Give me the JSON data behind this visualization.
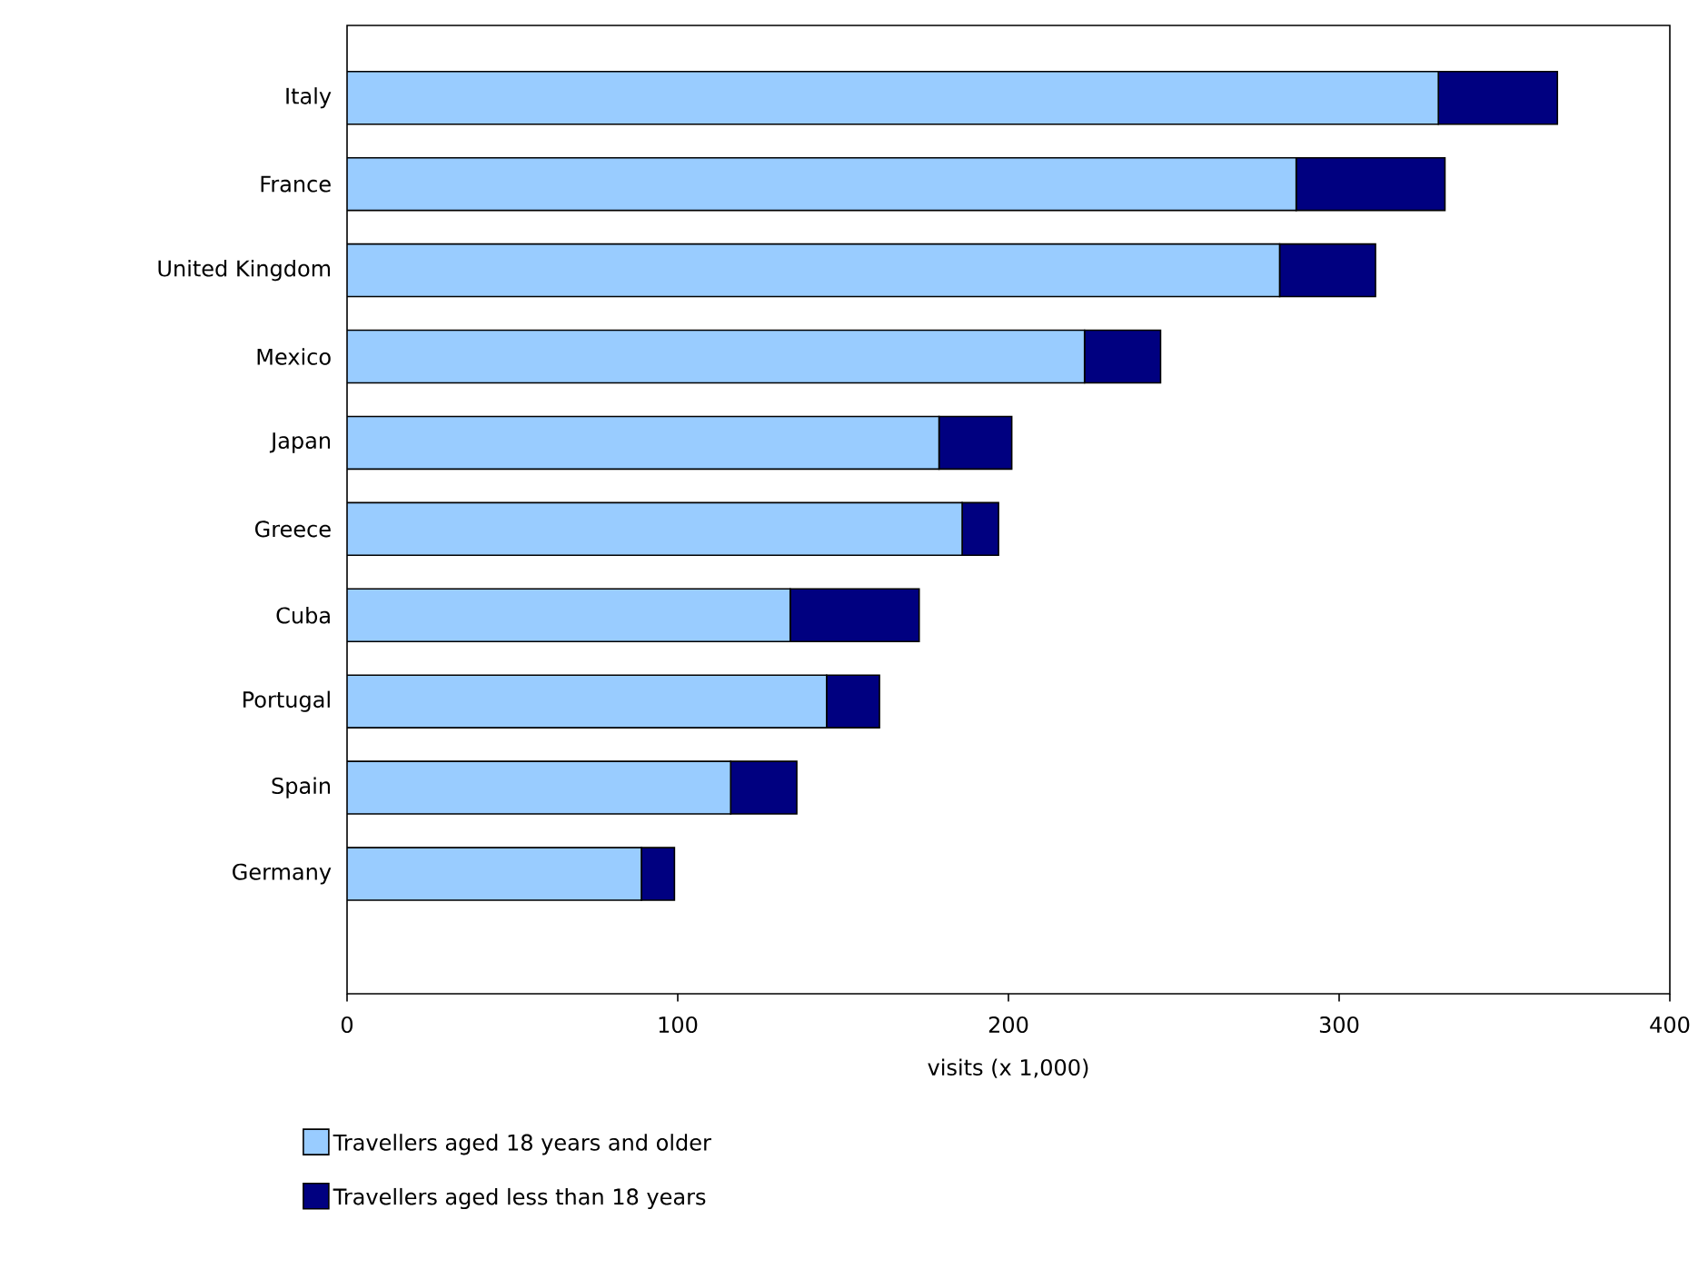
{
  "chart_data": {
    "type": "bar",
    "orientation": "horizontal",
    "stacked": true,
    "categories": [
      "Italy",
      "France",
      "United Kingdom",
      "Mexico",
      "Japan",
      "Greece",
      "Cuba",
      "Portugal",
      "Spain",
      "Germany"
    ],
    "series": [
      {
        "name": "Travellers aged 18 years and older",
        "color": "#99ccff",
        "values": [
          330,
          287,
          282,
          223,
          179,
          186,
          134,
          145,
          116,
          89
        ]
      },
      {
        "name": "Travellers aged less than 18 years",
        "color": "#000080",
        "values": [
          36,
          45,
          29,
          23,
          22,
          11,
          39,
          16,
          20,
          10
        ]
      }
    ],
    "xlim": [
      0,
      400
    ],
    "xticks": [
      0,
      100,
      200,
      300,
      400
    ],
    "xlabel": "visits (x 1,000)",
    "legend": "bottom",
    "grid": false
  }
}
